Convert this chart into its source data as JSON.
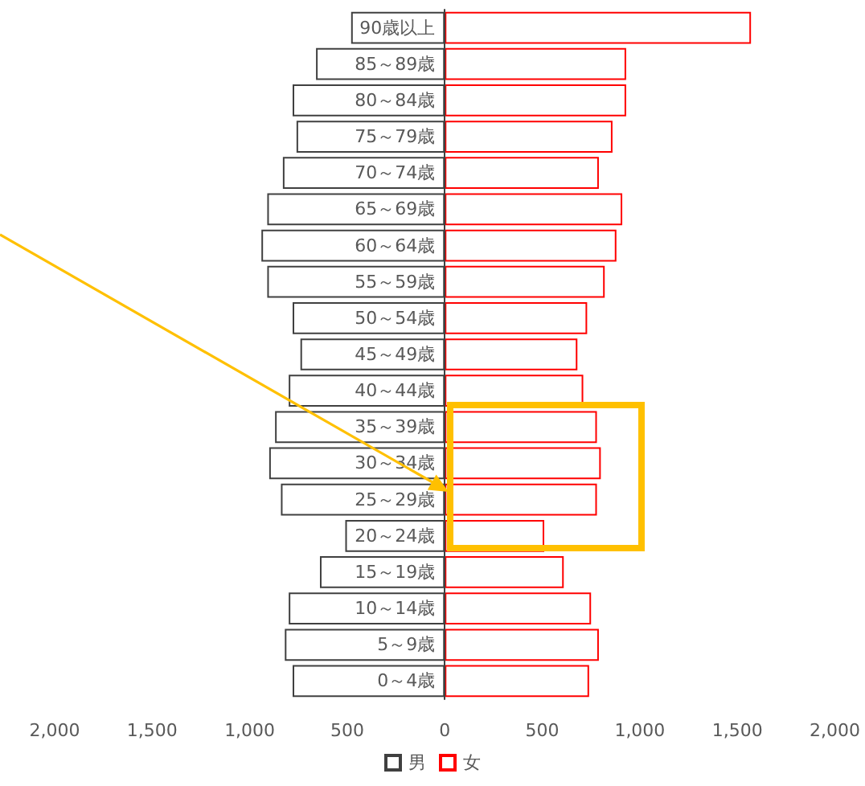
{
  "chart_data": {
    "type": "bar",
    "orientation": "horizontal",
    "categories": [
      "90歳以上",
      "85～89歳",
      "80～84歳",
      "75～79歳",
      "70～74歳",
      "65～69歳",
      "60～64歳",
      "55～59歳",
      "50～54歳",
      "45～49歳",
      "40～44歳",
      "35～39歳",
      "30～34歳",
      "25～29歳",
      "20～24歳",
      "15～19歳",
      "10～14歳",
      "5～9歳",
      "0～4歳"
    ],
    "series": [
      {
        "name": "男",
        "color": "#404040",
        "values": [
          -480,
          -660,
          -780,
          -760,
          -830,
          -910,
          -940,
          -910,
          -780,
          -740,
          -800,
          -870,
          -900,
          -840,
          -510,
          -640,
          -800,
          -820,
          -780
        ]
      },
      {
        "name": "女",
        "color": "#ff0000",
        "values": [
          1570,
          930,
          930,
          860,
          790,
          910,
          880,
          820,
          730,
          680,
          710,
          780,
          800,
          780,
          510,
          610,
          750,
          790,
          740
        ]
      }
    ],
    "xlim": [
      -2000,
      2000
    ],
    "xticks": [
      {
        "value": -2000,
        "label": "2,000"
      },
      {
        "value": -1500,
        "label": "1,500"
      },
      {
        "value": -1000,
        "label": "1,000"
      },
      {
        "value": -500,
        "label": "500"
      },
      {
        "value": 0,
        "label": "0"
      },
      {
        "value": 500,
        "label": "500"
      },
      {
        "value": 1000,
        "label": "1,000"
      },
      {
        "value": 1500,
        "label": "1,500"
      },
      {
        "value": 2000,
        "label": "2,000"
      }
    ],
    "stacked": true,
    "grid": false,
    "legend": "bottom"
  }
}
